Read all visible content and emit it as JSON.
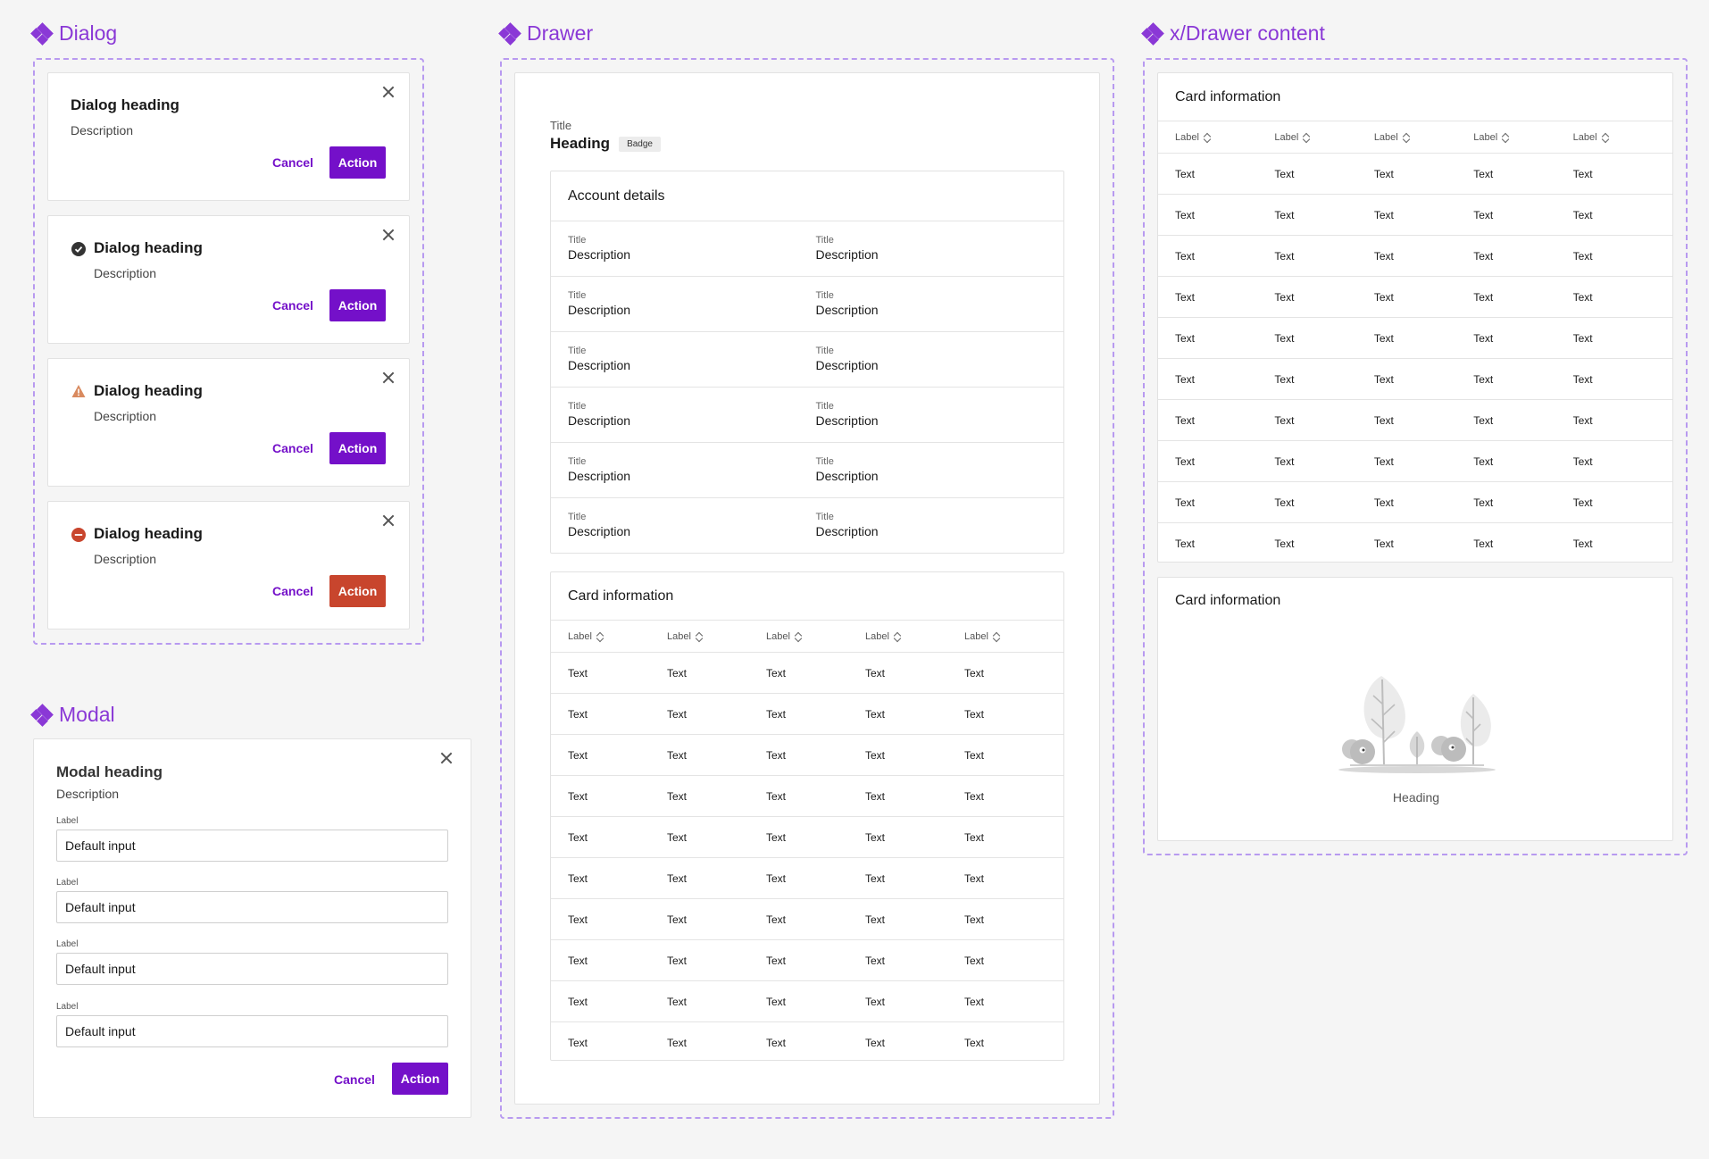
{
  "dialog_section": {
    "title": "Dialog",
    "dialogs": [
      {
        "heading": "Dialog heading",
        "description": "Description",
        "cancel": "Cancel",
        "action": "Action",
        "status": "none"
      },
      {
        "heading": "Dialog heading",
        "description": "Description",
        "cancel": "Cancel",
        "action": "Action",
        "status": "success"
      },
      {
        "heading": "Dialog heading",
        "description": "Description",
        "cancel": "Cancel",
        "action": "Action",
        "status": "warning"
      },
      {
        "heading": "Dialog heading",
        "description": "Description",
        "cancel": "Cancel",
        "action": "Action",
        "status": "danger"
      }
    ]
  },
  "modal_section": {
    "title": "Modal",
    "heading": "Modal heading",
    "description": "Description",
    "fields": [
      {
        "label": "Label",
        "value": "Default input"
      },
      {
        "label": "Label",
        "value": "Default input"
      },
      {
        "label": "Label",
        "value": "Default input"
      },
      {
        "label": "Label",
        "value": "Default input"
      }
    ],
    "cancel": "Cancel",
    "action": "Action"
  },
  "drawer_section": {
    "title": "Drawer",
    "overline": "Title",
    "heading": "Heading",
    "badge": "Badge",
    "account": {
      "title": "Account details",
      "rows": [
        [
          {
            "title": "Title",
            "desc": "Description"
          },
          {
            "title": "Title",
            "desc": "Description"
          }
        ],
        [
          {
            "title": "Title",
            "desc": "Description"
          },
          {
            "title": "Title",
            "desc": "Description"
          }
        ],
        [
          {
            "title": "Title",
            "desc": "Description"
          },
          {
            "title": "Title",
            "desc": "Description"
          }
        ],
        [
          {
            "title": "Title",
            "desc": "Description"
          },
          {
            "title": "Title",
            "desc": "Description"
          }
        ],
        [
          {
            "title": "Title",
            "desc": "Description"
          },
          {
            "title": "Title",
            "desc": "Description"
          }
        ],
        [
          {
            "title": "Title",
            "desc": "Description"
          },
          {
            "title": "Title",
            "desc": "Description"
          }
        ]
      ]
    },
    "card": {
      "title": "Card information",
      "columns": [
        "Label",
        "Label",
        "Label",
        "Label",
        "Label"
      ],
      "rows": [
        [
          "Text",
          "Text",
          "Text",
          "Text",
          "Text"
        ],
        [
          "Text",
          "Text",
          "Text",
          "Text",
          "Text"
        ],
        [
          "Text",
          "Text",
          "Text",
          "Text",
          "Text"
        ],
        [
          "Text",
          "Text",
          "Text",
          "Text",
          "Text"
        ],
        [
          "Text",
          "Text",
          "Text",
          "Text",
          "Text"
        ],
        [
          "Text",
          "Text",
          "Text",
          "Text",
          "Text"
        ],
        [
          "Text",
          "Text",
          "Text",
          "Text",
          "Text"
        ],
        [
          "Text",
          "Text",
          "Text",
          "Text",
          "Text"
        ],
        [
          "Text",
          "Text",
          "Text",
          "Text",
          "Text"
        ],
        [
          "Text",
          "Text",
          "Text",
          "Text",
          "Text"
        ]
      ]
    }
  },
  "drawer_content_section": {
    "title": "x/Drawer content",
    "table_card": {
      "title": "Card information",
      "columns": [
        "Label",
        "Label",
        "Label",
        "Label",
        "Label"
      ],
      "rows": [
        [
          "Text",
          "Text",
          "Text",
          "Text",
          "Text"
        ],
        [
          "Text",
          "Text",
          "Text",
          "Text",
          "Text"
        ],
        [
          "Text",
          "Text",
          "Text",
          "Text",
          "Text"
        ],
        [
          "Text",
          "Text",
          "Text",
          "Text",
          "Text"
        ],
        [
          "Text",
          "Text",
          "Text",
          "Text",
          "Text"
        ],
        [
          "Text",
          "Text",
          "Text",
          "Text",
          "Text"
        ],
        [
          "Text",
          "Text",
          "Text",
          "Text",
          "Text"
        ],
        [
          "Text",
          "Text",
          "Text",
          "Text",
          "Text"
        ],
        [
          "Text",
          "Text",
          "Text",
          "Text",
          "Text"
        ],
        [
          "Text",
          "Text",
          "Text",
          "Text",
          "Text"
        ]
      ]
    },
    "empty_card": {
      "title": "Card information",
      "empty_heading": "Heading"
    }
  },
  "colors": {
    "accent": "#8a38d6",
    "primary_button": "#7410c9",
    "danger_button": "#c8452d",
    "success_icon": "#333333",
    "warning_icon": "#d98a5f",
    "danger_icon": "#c8452d"
  }
}
